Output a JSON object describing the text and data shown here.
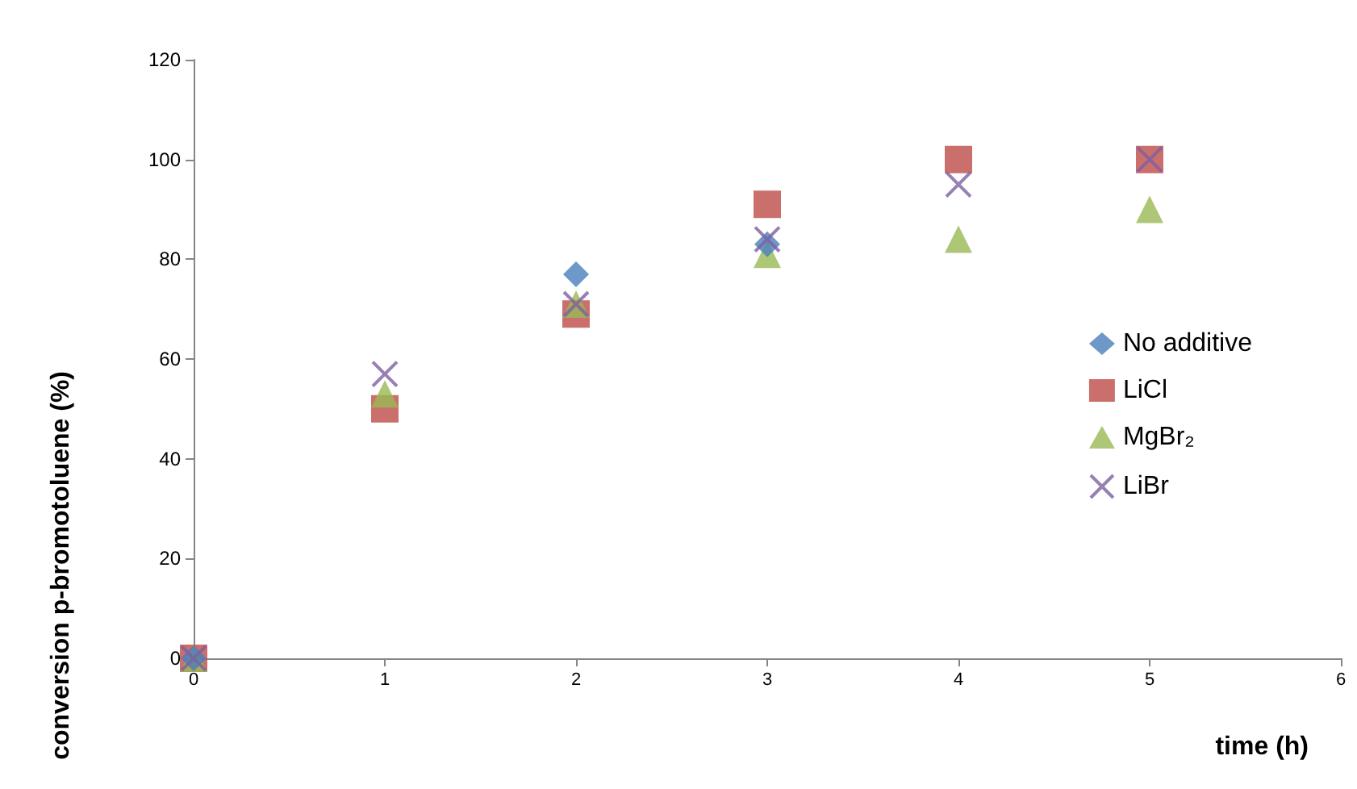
{
  "chart_data": {
    "type": "scatter",
    "xlabel": "time (h)",
    "ylabel": "conversion p-bromotoluene (%)",
    "x": [
      0,
      1,
      2,
      3,
      4,
      5
    ],
    "series": [
      {
        "name": "No additive",
        "color": "#4a7ebb",
        "marker": "diamond",
        "values": [
          0,
          null,
          77,
          83,
          null,
          null
        ]
      },
      {
        "name": "LiCl",
        "color": "#be4b48",
        "marker": "square",
        "values": [
          0,
          50,
          69,
          91,
          100,
          100
        ]
      },
      {
        "name": "MgBr₂",
        "color": "#98b954",
        "marker": "triangle",
        "values": [
          0,
          53,
          71,
          81,
          84,
          90
        ]
      },
      {
        "name": "LiBr",
        "color": "#7d60a0",
        "marker": "cross",
        "values": [
          0,
          57,
          71,
          84,
          95,
          100
        ]
      }
    ],
    "xlim": [
      0,
      6
    ],
    "xticks": [
      0,
      1,
      2,
      3,
      4,
      5,
      6
    ],
    "ylim": [
      0,
      120
    ],
    "yticks": [
      0,
      20,
      40,
      60,
      80,
      100,
      120
    ],
    "grid": false,
    "legend": "right"
  }
}
